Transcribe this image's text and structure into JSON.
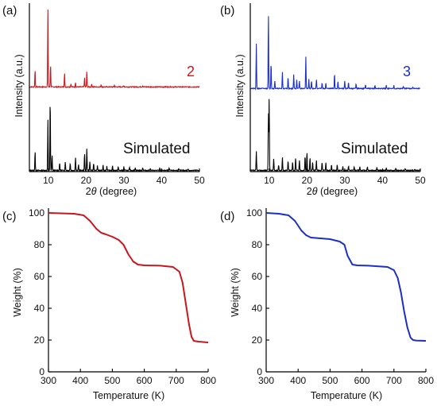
{
  "chart_data": [
    {
      "panel": "(a)",
      "type": "line",
      "xlabel_prefix": "2",
      "xlabel_theta": "θ",
      "xlabel_suffix": " (degree)",
      "ylabel": "Intensity (a.u.)",
      "xlim": [
        5,
        50
      ],
      "x_ticks": [
        "10",
        "20",
        "30",
        "40",
        "50"
      ],
      "series": [
        {
          "name": "2",
          "color": "#c9161c",
          "peaks": [
            [
              6.5,
              0.22
            ],
            [
              9.9,
              1.0
            ],
            [
              10.6,
              0.28
            ],
            [
              14.3,
              0.18
            ],
            [
              16.0,
              0.04
            ],
            [
              17.2,
              0.06
            ],
            [
              19.6,
              0.12
            ],
            [
              20.2,
              0.2
            ],
            [
              21.5,
              0.04
            ],
            [
              24.0,
              0.03
            ],
            [
              27.5,
              0.02
            ],
            [
              30.0,
              0.02
            ],
            [
              35.0,
              0.015
            ]
          ]
        },
        {
          "name": "Simulated",
          "color": "#000000",
          "peaks": [
            [
              6.5,
              0.26
            ],
            [
              9.9,
              0.68
            ],
            [
              10.5,
              1.0
            ],
            [
              11.0,
              0.22
            ],
            [
              13.0,
              0.1
            ],
            [
              14.5,
              0.12
            ],
            [
              15.8,
              0.1
            ],
            [
              17.2,
              0.18
            ],
            [
              18.0,
              0.08
            ],
            [
              19.6,
              0.24
            ],
            [
              20.2,
              0.3
            ],
            [
              21.0,
              0.12
            ],
            [
              22.0,
              0.1
            ],
            [
              23.0,
              0.06
            ],
            [
              24.5,
              0.08
            ],
            [
              25.5,
              0.06
            ],
            [
              27.0,
              0.06
            ],
            [
              28.5,
              0.05
            ],
            [
              30.0,
              0.05
            ],
            [
              31.5,
              0.04
            ],
            [
              33.0,
              0.04
            ],
            [
              35.0,
              0.04
            ],
            [
              37.0,
              0.03
            ],
            [
              39.5,
              0.03
            ],
            [
              42.0,
              0.03
            ],
            [
              44.5,
              0.02
            ],
            [
              47.0,
              0.02
            ]
          ]
        }
      ]
    },
    {
      "panel": "(b)",
      "type": "line",
      "xlabel_prefix": "2",
      "xlabel_theta": "θ",
      "xlabel_suffix": " (degree)",
      "ylabel": "Intensity (a.u.)",
      "xlim": [
        5,
        50
      ],
      "x_ticks": [
        "10",
        "20",
        "30",
        "40",
        "50"
      ],
      "series": [
        {
          "name": "3",
          "color": "#1a2fc9",
          "peaks": [
            [
              6.6,
              0.58
            ],
            [
              9.8,
              1.0
            ],
            [
              10.5,
              0.35
            ],
            [
              11.5,
              0.1
            ],
            [
              13.5,
              0.22
            ],
            [
              15.0,
              0.15
            ],
            [
              16.5,
              0.18
            ],
            [
              17.3,
              0.12
            ],
            [
              18.0,
              0.1
            ],
            [
              19.7,
              0.42
            ],
            [
              20.5,
              0.12
            ],
            [
              21.2,
              0.1
            ],
            [
              22.5,
              0.12
            ],
            [
              24.0,
              0.08
            ],
            [
              25.0,
              0.07
            ],
            [
              27.3,
              0.2
            ],
            [
              28.2,
              0.1
            ],
            [
              30.0,
              0.1
            ],
            [
              31.0,
              0.08
            ],
            [
              33.0,
              0.07
            ],
            [
              35.5,
              0.05
            ],
            [
              38.0,
              0.04
            ],
            [
              41.0,
              0.04
            ],
            [
              43.0,
              0.04
            ],
            [
              45.5,
              0.03
            ],
            [
              48.0,
              0.02
            ]
          ]
        },
        {
          "name": "Simulated",
          "color": "#000000",
          "peaks": [
            [
              6.6,
              0.26
            ],
            [
              9.8,
              0.8
            ],
            [
              10.0,
              1.0
            ],
            [
              11.2,
              0.16
            ],
            [
              12.5,
              0.08
            ],
            [
              13.5,
              0.18
            ],
            [
              15.0,
              0.14
            ],
            [
              16.2,
              0.12
            ],
            [
              17.0,
              0.18
            ],
            [
              18.0,
              0.14
            ],
            [
              19.5,
              0.2
            ],
            [
              20.0,
              0.26
            ],
            [
              20.8,
              0.18
            ],
            [
              21.5,
              0.12
            ],
            [
              22.5,
              0.14
            ],
            [
              24.0,
              0.12
            ],
            [
              25.0,
              0.1
            ],
            [
              26.5,
              0.08
            ],
            [
              28.0,
              0.08
            ],
            [
              29.5,
              0.06
            ],
            [
              31.0,
              0.06
            ],
            [
              32.5,
              0.05
            ],
            [
              34.0,
              0.05
            ],
            [
              36.0,
              0.05
            ],
            [
              38.5,
              0.04
            ],
            [
              41.0,
              0.04
            ],
            [
              43.5,
              0.03
            ],
            [
              46.0,
              0.03
            ],
            [
              48.5,
              0.02
            ]
          ]
        }
      ]
    },
    {
      "panel": "(c)",
      "type": "line",
      "xlabel": "Temperature (K)",
      "ylabel": "Weight (%)",
      "xlim": [
        300,
        800
      ],
      "ylim": [
        0,
        100
      ],
      "x_ticks": [
        "300",
        "400",
        "500",
        "600",
        "700",
        "800"
      ],
      "y_ticks": [
        "0",
        "20",
        "40",
        "60",
        "80",
        "100"
      ],
      "series": [
        {
          "color": "#c9161c",
          "x": [
            300,
            380,
            410,
            430,
            450,
            465,
            480,
            500,
            520,
            535,
            550,
            565,
            580,
            600,
            650,
            690,
            710,
            720,
            730,
            740,
            748,
            755,
            760,
            770,
            800
          ],
          "y": [
            100,
            99.5,
            98.5,
            95,
            90,
            87.5,
            86.5,
            85,
            83,
            80,
            74,
            69.5,
            67.5,
            67,
            66.8,
            66,
            63,
            56,
            43,
            30,
            22,
            19.5,
            19.3,
            19,
            18.5
          ]
        }
      ]
    },
    {
      "panel": "(d)",
      "type": "line",
      "xlabel": "Temperature (K)",
      "ylabel": "Weight (%)",
      "xlim": [
        300,
        800
      ],
      "ylim": [
        0,
        100
      ],
      "x_ticks": [
        "300",
        "400",
        "500",
        "600",
        "700",
        "800"
      ],
      "y_ticks": [
        "0",
        "20",
        "40",
        "60",
        "80",
        "100"
      ],
      "series": [
        {
          "color": "#1a2fc9",
          "x": [
            300,
            340,
            370,
            390,
            410,
            425,
            440,
            470,
            500,
            530,
            545,
            555,
            570,
            585,
            620,
            680,
            700,
            712,
            722,
            732,
            742,
            752,
            760,
            770,
            800
          ],
          "y": [
            100,
            99.5,
            98.5,
            95,
            89,
            86,
            84.5,
            84,
            83.5,
            82,
            80,
            73,
            67.5,
            67,
            66.8,
            66,
            64,
            59,
            50,
            38,
            28,
            21.5,
            20,
            19.7,
            19.5
          ]
        }
      ]
    }
  ],
  "labels": {
    "a": "(a)",
    "b": "(b)",
    "c": "(c)",
    "d": "(d)",
    "num2": "2",
    "num3": "3",
    "sim_a": "Simulated",
    "sim_b": "Simulated"
  }
}
